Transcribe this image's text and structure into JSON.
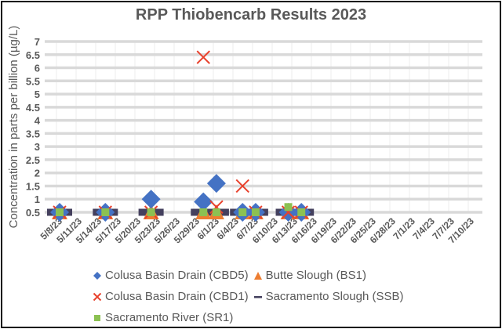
{
  "chart_data": {
    "type": "scatter",
    "title": "RPP Thiobencarb Results 2023",
    "xlabel": "",
    "ylabel": "Concentration in parts per billion (µg/L)",
    "ylim": [
      0.5,
      7
    ],
    "yticks": [
      "0.5",
      "1",
      "1.5",
      "2",
      "2.5",
      "3",
      "3.5",
      "4",
      "4.5",
      "5",
      "5.5",
      "6",
      "6.5",
      "7"
    ],
    "xticks": [
      "5/8/23",
      "5/11/23",
      "5/14/23",
      "5/17/23",
      "5/20/23",
      "5/23/23",
      "5/26/23",
      "5/29/23",
      "6/1/23",
      "6/4/23",
      "6/7/23",
      "6/10/23",
      "6/13/23",
      "6/16/23",
      "6/19/23",
      "6/22/23",
      "6/25/23",
      "6/28/23",
      "7/1/23",
      "7/4/23",
      "7/7/23",
      "7/10/23"
    ],
    "grid": true,
    "legend_position": "bottom",
    "x_dates": [
      "5/8/23",
      "5/15/23",
      "5/22/23",
      "5/30/23",
      "6/1/23",
      "6/5/23",
      "6/7/23",
      "6/12/23",
      "6/14/23"
    ],
    "x_day_offsets": [
      0,
      7,
      14,
      22,
      24,
      28,
      30,
      35,
      37
    ],
    "series": [
      {
        "name": "Colusa Basin Drain (CBD5)",
        "marker": "diamond",
        "color": "#4472C4",
        "values": [
          0.5,
          0.5,
          1.0,
          0.9,
          1.6,
          0.5,
          0.5,
          0.5,
          0.5
        ]
      },
      {
        "name": "Butte Slough (BS1)",
        "marker": "triangle",
        "color": "#ED7D31",
        "values": [
          0.5,
          0.5,
          0.5,
          0.5,
          0.5,
          0.5,
          0.5,
          0.5,
          0.5
        ]
      },
      {
        "name": "Colusa Basin Drain (CBD1)",
        "marker": "x",
        "color": "#E8412C",
        "values": [
          0.5,
          0.5,
          0.5,
          6.4,
          0.7,
          1.5,
          0.5,
          0.5,
          0.5
        ]
      },
      {
        "name": "Sacramento Slough (SSB)",
        "marker": "dash",
        "color": "#44405E",
        "values": [
          0.5,
          0.5,
          0.5,
          0.5,
          0.5,
          0.5,
          0.5,
          0.5,
          0.5
        ]
      },
      {
        "name": "Sacramento River (SR1)",
        "marker": "square",
        "color": "#8CC152",
        "values": [
          0.5,
          0.5,
          0.5,
          0.5,
          0.5,
          0.5,
          0.5,
          0.7,
          0.5
        ]
      }
    ]
  },
  "legend": {
    "items": [
      {
        "label": "Colusa Basin Drain (CBD5)",
        "marker": "diamond",
        "color": "#4472C4"
      },
      {
        "label": "Butte Slough (BS1)",
        "marker": "triangle",
        "color": "#ED7D31"
      },
      {
        "label": "Colusa Basin Drain (CBD1)",
        "marker": "x",
        "color": "#E8412C"
      },
      {
        "label": "Sacramento Slough (SSB)",
        "marker": "dash",
        "color": "#44405E"
      },
      {
        "label": "Sacramento River (SR1)",
        "marker": "square",
        "color": "#8CC152"
      }
    ]
  }
}
